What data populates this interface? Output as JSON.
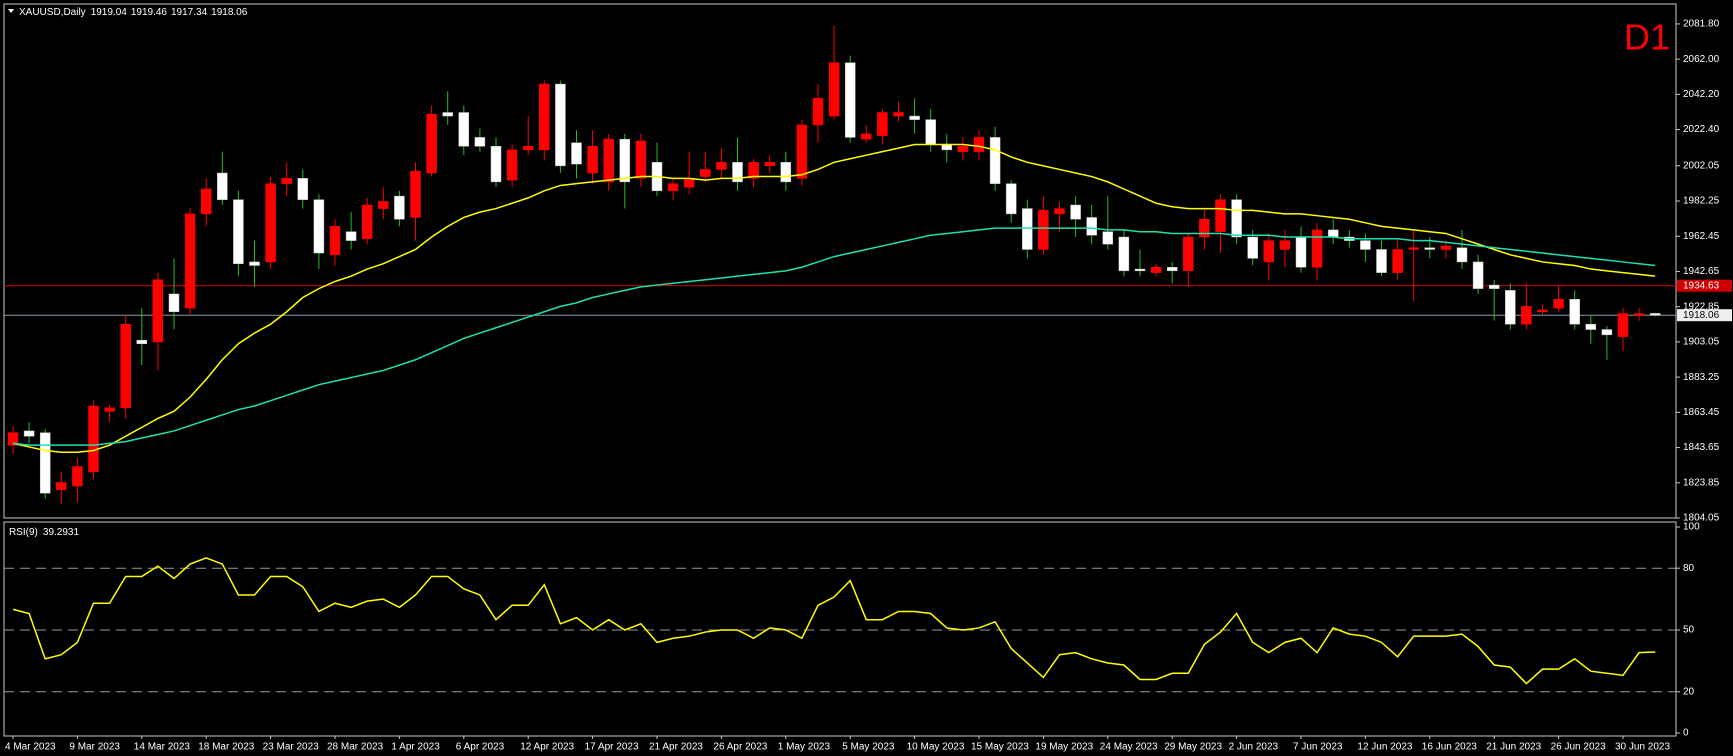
{
  "chart_data": [
    {
      "type": "candlestick",
      "title": "XAUUSD,Daily",
      "timeframe": "D1",
      "categories": [
        "4 Mar 2023",
        null,
        null,
        null,
        "9 Mar 2023",
        null,
        null,
        null,
        "14 Mar 2023",
        null,
        null,
        null,
        "18 Mar 2023",
        null,
        null,
        null,
        "23 Mar 2023",
        null,
        null,
        null,
        "28 Mar 2023",
        null,
        null,
        null,
        "1 Apr 2023",
        null,
        null,
        null,
        "6 Apr 2023",
        null,
        null,
        null,
        "12 Apr 2023",
        null,
        null,
        null,
        "17 Apr 2023",
        null,
        null,
        null,
        "21 Apr 2023",
        null,
        null,
        null,
        "26 Apr 2023",
        null,
        null,
        null,
        "1 May 2023",
        null,
        null,
        null,
        "5 May 2023",
        null,
        null,
        null,
        "10 May 2023",
        null,
        null,
        null,
        "15 May 2023",
        null,
        null,
        null,
        "19 May 2023",
        null,
        null,
        null,
        "24 May 2023",
        null,
        null,
        null,
        "29 May 2023",
        null,
        null,
        null,
        "2 Jun 2023",
        null,
        null,
        null,
        "7 Jun 2023",
        null,
        null,
        null,
        "12 Jun 2023",
        null,
        null,
        null,
        "16 Jun 2023",
        null,
        null,
        null,
        "21 Jun 2023",
        null,
        null,
        null,
        "26 Jun 2023",
        null,
        null,
        null,
        "30 Jun 2023",
        null,
        null
      ],
      "open": [
        1845,
        1853,
        1852,
        1820,
        1822,
        1830,
        1864,
        1866,
        1904,
        1903,
        1930,
        1922,
        1975,
        1998,
        1983,
        1948,
        1948,
        1992,
        1995,
        1983,
        1952,
        1965,
        1961,
        1978,
        1985,
        1973,
        1998,
        2032,
        2032,
        2018,
        2013,
        1994,
        2011,
        2011,
        2048,
        2015,
        1998,
        1993,
        2017,
        1995,
        2004,
        1988,
        1990,
        1996,
        2000,
        2004,
        1995,
        2002,
        2004,
        1995,
        2025,
        2030,
        2060,
        2017,
        2019,
        2030,
        2030,
        2028,
        2014,
        2010,
        2010,
        2018,
        1992,
        1978,
        1955,
        1975,
        1980,
        1973,
        1965,
        1962,
        1944,
        1942,
        1945,
        1943,
        1962,
        1965,
        1983,
        1962,
        1948,
        1955,
        1962,
        1945,
        1966,
        1962,
        1960,
        1955,
        1942,
        1955,
        1956,
        1955,
        1956,
        1948,
        1935,
        1932,
        1913,
        1920,
        1922,
        1927,
        1913,
        1910,
        1906,
        1918,
        1919.04
      ],
      "high": [
        1856,
        1858,
        1854,
        1830,
        1838,
        1870,
        1868,
        1918,
        1922,
        1942,
        1950,
        1978,
        1995,
        2010,
        1988,
        1960,
        1996,
        2004,
        2000,
        1986,
        1972,
        1976,
        1984,
        1990,
        1988,
        2004,
        2036,
        2044,
        2036,
        2023,
        2018,
        2014,
        2030,
        2050,
        2050,
        2022,
        2022,
        2020,
        2020,
        2020,
        2015,
        1995,
        2010,
        2010,
        2012,
        2018,
        2006,
        2008,
        2010,
        2028,
        2048,
        2081,
        2064,
        2025,
        2034,
        2038,
        2040,
        2034,
        2020,
        2018,
        2022,
        2024,
        1994,
        1983,
        1985,
        1982,
        1985,
        1980,
        1985,
        1966,
        1955,
        1947,
        1948,
        1964,
        1978,
        1986,
        1986,
        1966,
        1964,
        1966,
        1968,
        1970,
        1972,
        1966,
        1964,
        1960,
        1960,
        1966,
        1962,
        1960,
        1966,
        1952,
        1938,
        1936,
        1936,
        1924,
        1935,
        1932,
        1918,
        1912,
        1922,
        1922,
        1919.46
      ],
      "low": [
        1840,
        1846,
        1815,
        1812,
        1813,
        1826,
        1858,
        1860,
        1890,
        1887,
        1910,
        1918,
        1968,
        1980,
        1940,
        1934,
        1944,
        1985,
        1978,
        1944,
        1946,
        1955,
        1958,
        1972,
        1968,
        1960,
        1996,
        2025,
        2008,
        2010,
        1990,
        1990,
        2008,
        2005,
        1998,
        1995,
        1992,
        1988,
        1978,
        1990,
        1985,
        1983,
        1986,
        1993,
        1995,
        1988,
        1990,
        1998,
        1988,
        1991,
        2015,
        2028,
        2015,
        2015,
        2014,
        2027,
        2020,
        2010,
        2004,
        2005,
        2005,
        1988,
        1970,
        1950,
        1952,
        1965,
        1962,
        1958,
        1955,
        1940,
        1940,
        1940,
        1936,
        1934,
        1955,
        1953,
        1958,
        1946,
        1938,
        1945,
        1942,
        1938,
        1958,
        1956,
        1948,
        1940,
        1938,
        1926,
        1950,
        1950,
        1944,
        1930,
        1915,
        1910,
        1910,
        1918,
        1920,
        1910,
        1902,
        1893,
        1898,
        1915,
        1917.34
      ],
      "close": [
        1852,
        1850,
        1818,
        1824,
        1833,
        1867,
        1866,
        1913,
        1902,
        1938,
        1920,
        1975,
        1989,
        1983,
        1947,
        1946,
        1992,
        1995,
        1983,
        1953,
        1968,
        1960,
        1980,
        1982,
        1972,
        1999,
        2031,
        2030,
        2013,
        2013,
        1993,
        2011,
        2013,
        2048,
        2002,
        2003,
        2013,
        2017,
        1993,
        2016,
        1988,
        1992,
        1995,
        2000,
        2004,
        1993,
        2004,
        2004,
        1993,
        2025,
        2040,
        2060,
        2018,
        2020,
        2032,
        2032,
        2028,
        2014,
        2011,
        2013,
        2018,
        1992,
        1975,
        1955,
        1977,
        1978,
        1972,
        1963,
        1958,
        1943,
        1943,
        1945,
        1943,
        1962,
        1972,
        1983,
        1962,
        1950,
        1960,
        1960,
        1945,
        1966,
        1962,
        1960,
        1955,
        1942,
        1955,
        1956,
        1955,
        1957,
        1948,
        1933,
        1933,
        1913,
        1923,
        1921,
        1927,
        1913,
        1910,
        1907,
        1919,
        1919,
        1918.06
      ],
      "up_color": "#ff0000",
      "down_color": "#ffffff",
      "up_wick_color": "#ff0000",
      "down_wick_color": "#22c022",
      "overlays": [
        {
          "color": "#ffff00",
          "values": [
            1846,
            1844,
            1842,
            1841,
            1841,
            1842,
            1845,
            1850,
            1855,
            1860,
            1864,
            1872,
            1882,
            1893,
            1902,
            1908,
            1913,
            1920,
            1928,
            1933,
            1937,
            1940,
            1944,
            1947,
            1951,
            1955,
            1962,
            1968,
            1973,
            1976,
            1978,
            1981,
            1984,
            1988,
            1991,
            1992,
            1993,
            1994,
            1995,
            1996,
            1996,
            1995,
            1995,
            1994,
            1995,
            1995,
            1996,
            1996,
            1996,
            1997,
            2000,
            2004,
            2006,
            2008,
            2010,
            2012,
            2014,
            2014,
            2014,
            2014,
            2013,
            2011,
            2007,
            2004,
            2002,
            2000,
            1998,
            1996,
            1993,
            1989,
            1985,
            1981,
            1979,
            1978,
            1978,
            1978,
            1977,
            1977,
            1976,
            1975,
            1975,
            1974,
            1973,
            1972,
            1970,
            1968,
            1967,
            1966,
            1965,
            1964,
            1961,
            1958,
            1955,
            1952,
            1950,
            1948,
            1947,
            1946,
            1944,
            1943,
            1942,
            1941,
            1940
          ]
        },
        {
          "color": "#20e0b0",
          "values": [
            1846,
            1845,
            1845,
            1845,
            1845,
            1845,
            1846,
            1847,
            1849,
            1851,
            1853,
            1856,
            1859,
            1862,
            1865,
            1867,
            1870,
            1873,
            1876,
            1879,
            1881,
            1883,
            1885,
            1887,
            1890,
            1893,
            1897,
            1901,
            1905,
            1908,
            1911,
            1914,
            1917,
            1920,
            1923,
            1925,
            1928,
            1930,
            1932,
            1934,
            1935,
            1936,
            1937,
            1938,
            1939,
            1940,
            1941,
            1942,
            1943,
            1945,
            1948,
            1951,
            1953,
            1955,
            1957,
            1959,
            1961,
            1963,
            1964,
            1965,
            1966,
            1967,
            1967,
            1967,
            1967,
            1967,
            1967,
            1967,
            1966,
            1966,
            1965,
            1965,
            1964,
            1964,
            1964,
            1964,
            1963,
            1963,
            1963,
            1962,
            1962,
            1962,
            1962,
            1961,
            1961,
            1961,
            1961,
            1960,
            1960,
            1959,
            1958,
            1957,
            1956,
            1955,
            1954,
            1953,
            1952,
            1951,
            1950,
            1949,
            1948,
            1947,
            1946
          ]
        }
      ],
      "hlines": [
        {
          "value": 1934.63,
          "color": "#d00000"
        }
      ],
      "last_price_color": "#8899aa",
      "ylim": [
        1804.05,
        2093
      ],
      "yticks": [
        {
          "value": 2081.8,
          "label": "2081.80"
        },
        {
          "value": 2062,
          "label": "2062.00"
        },
        {
          "value": 2042.2,
          "label": "2042.20"
        },
        {
          "value": 2022.4,
          "label": "2022.40"
        },
        2002.05,
        1982.25,
        1962.45,
        1942.65,
        1922.85,
        1903.05,
        1883.25,
        1863.45,
        1843.65,
        1823.85,
        1804.05
      ],
      "grid": false
    },
    {
      "type": "line",
      "title": "RSI(9)",
      "color": "#ffff00",
      "values": [
        60,
        58,
        36,
        38,
        44,
        63,
        63,
        76,
        76,
        81,
        75,
        82,
        85,
        82,
        67,
        67,
        76,
        76,
        71,
        59,
        63,
        61,
        64,
        65,
        61,
        67,
        76,
        76,
        70,
        67,
        55,
        62,
        62,
        72,
        53,
        56,
        50,
        55,
        50,
        53,
        44,
        46,
        47,
        49,
        50,
        50,
        46,
        51,
        50,
        46,
        62,
        66,
        74,
        55,
        55,
        59,
        59,
        58,
        51,
        50,
        51,
        54,
        41,
        34,
        27,
        38,
        39,
        36,
        34,
        33,
        26,
        26,
        29,
        29,
        43,
        49,
        58,
        44,
        39,
        44,
        46,
        39,
        51,
        48,
        47,
        44,
        37,
        47,
        47,
        47,
        48,
        42,
        33,
        32,
        24,
        31,
        31,
        36,
        30,
        29,
        28,
        39,
        39.2931
      ],
      "levels": [
        20,
        50,
        80
      ],
      "ylim": [
        0,
        100
      ],
      "yticks": [
        0,
        20,
        50,
        80,
        100
      ]
    }
  ]
}
